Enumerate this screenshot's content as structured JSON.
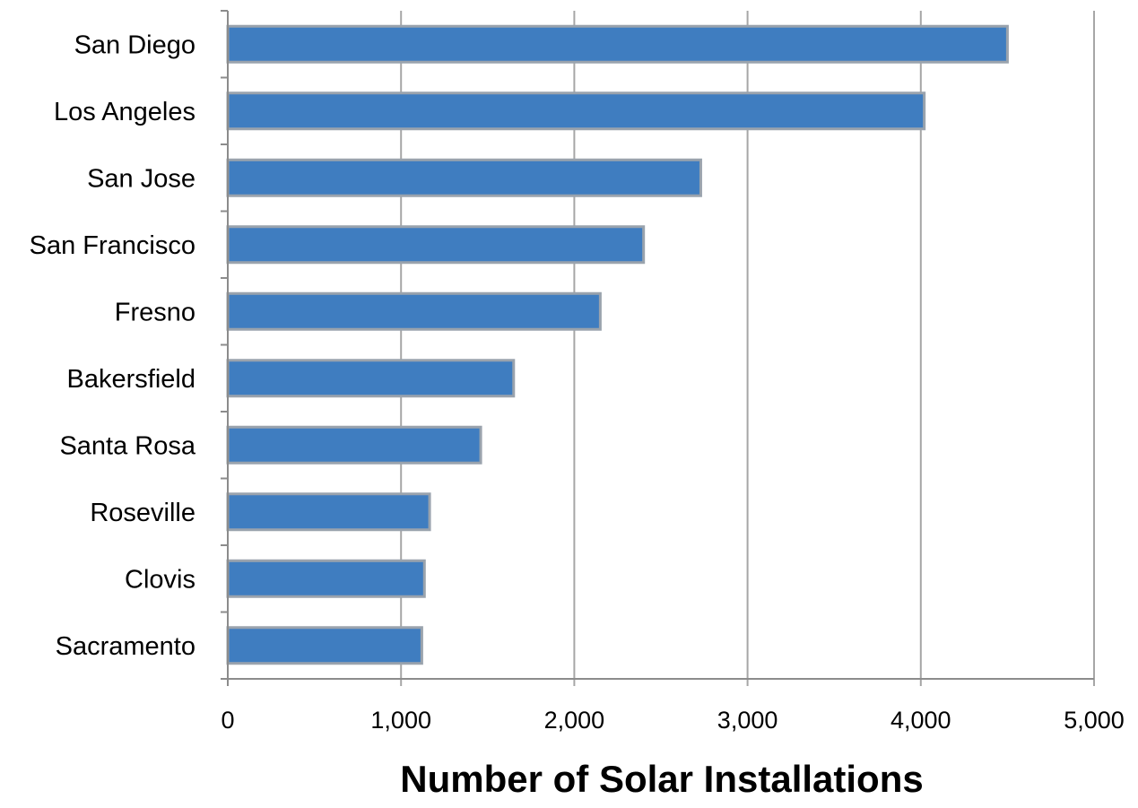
{
  "chart_data": {
    "type": "bar",
    "orientation": "horizontal",
    "categories": [
      "San Diego",
      "Los Angeles",
      "San Jose",
      "San Francisco",
      "Fresno",
      "Bakersfield",
      "Santa Rosa",
      "Roseville",
      "Clovis",
      "Sacramento"
    ],
    "values": [
      4500,
      4020,
      2730,
      2400,
      2150,
      1650,
      1460,
      1165,
      1135,
      1120
    ],
    "tick_labels": [
      "0",
      "1,000",
      "2,000",
      "3,000",
      "4,000",
      "5,000"
    ],
    "title": "",
    "xlabel": "Number of Solar Installations",
    "ylabel": "",
    "xlim": [
      0,
      5000
    ],
    "grid": true,
    "legend": "none",
    "colors": {
      "bar": "#3f7dc0",
      "bar_border": "#9aa3ad",
      "grid": "#a6a6a6",
      "axis": "#8c8c8c"
    }
  }
}
